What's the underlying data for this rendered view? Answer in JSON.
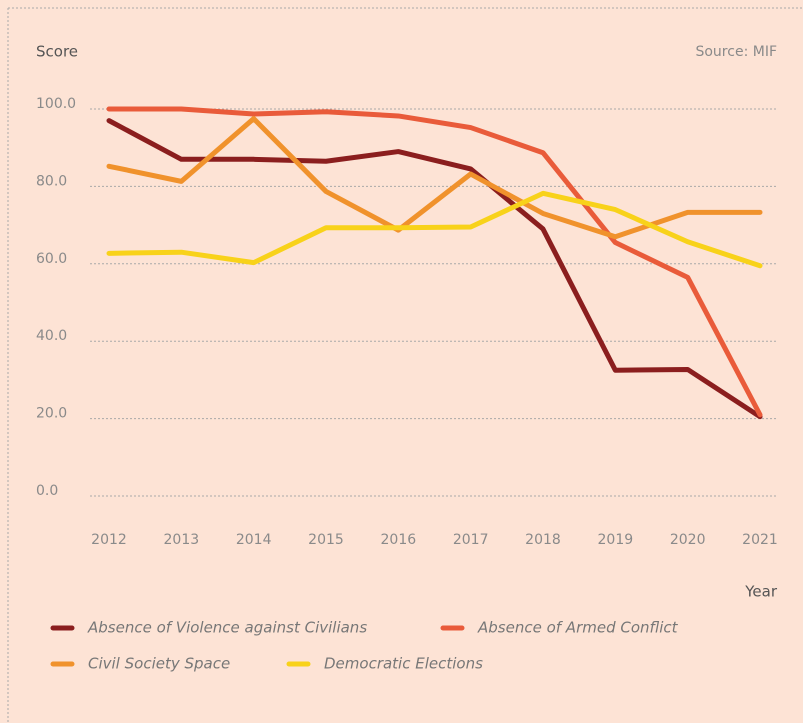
{
  "chart_data": {
    "type": "line",
    "y_label": "Score",
    "source": "Source: MIF",
    "x_label": "Year",
    "categories": [
      "2012",
      "2013",
      "2014",
      "2015",
      "2016",
      "2017",
      "2018",
      "2019",
      "2020",
      "2021"
    ],
    "series": [
      {
        "name": "Absence of Violence against Civilians",
        "color": "#8b1e1e",
        "values": [
          97,
          87,
          87,
          86.5,
          89,
          84.5,
          69,
          32.5,
          32.7,
          20.5
        ]
      },
      {
        "name": "Absence of Armed Conflict",
        "color": "#e95b3a",
        "values": [
          100,
          100,
          98.7,
          99.3,
          98.2,
          95.2,
          88.7,
          65.5,
          56.5,
          21
        ]
      },
      {
        "name": "Civil Society Space",
        "color": "#f0922c",
        "values": [
          85.2,
          81.3,
          97.5,
          78.7,
          68.7,
          83.2,
          73,
          67,
          73.3,
          73.3
        ]
      },
      {
        "name": "Democratic Elections",
        "color": "#f8d21a",
        "values": [
          62.7,
          63,
          60.3,
          69.3,
          69.3,
          69.5,
          78.2,
          74,
          65.7,
          59.5
        ]
      }
    ],
    "ylim": [
      0,
      100
    ],
    "yticks": [
      {
        "value": 0,
        "label": "0.0"
      },
      {
        "value": 20,
        "label": "20.0"
      },
      {
        "value": 40,
        "label": "40.0"
      },
      {
        "value": 60,
        "label": "60.0"
      },
      {
        "value": 80,
        "label": "80.0"
      },
      {
        "value": 100,
        "label": "100.0"
      }
    ],
    "grid": true
  }
}
